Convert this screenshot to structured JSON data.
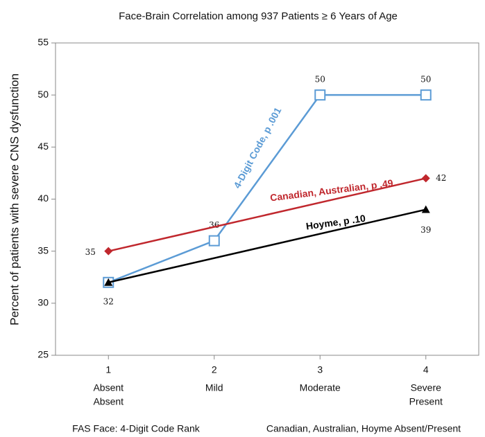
{
  "chart_data": {
    "type": "line",
    "title": "Face-Brain Correlation among 937 Patients ≥ 6 Years of Age",
    "ylabel": "Percent of patients with severe CNS dysfunction",
    "xlabels": [
      "FAS Face: 4-Digit Code Rank",
      "Canadian, Australian, Hoyme Absent/Present"
    ],
    "x": [
      1,
      2,
      3,
      4
    ],
    "category_labels": [
      [
        "Absent",
        "Absent"
      ],
      [
        "Mild"
      ],
      [
        "Moderate"
      ],
      [
        "Severe",
        "Present"
      ]
    ],
    "xlim": [
      0.5,
      4.5
    ],
    "xticks": [
      1,
      2,
      3,
      4
    ],
    "ylim": [
      25,
      55
    ],
    "yticks": [
      25,
      30,
      35,
      40,
      45,
      50,
      55
    ],
    "grid": false,
    "series": [
      {
        "name": "4-Digit Code, p .001",
        "color": "#5b9bd5",
        "marker": "square",
        "values": [
          32,
          36,
          50,
          50
        ],
        "value_labels": [
          "32",
          "36",
          "50",
          "50"
        ]
      },
      {
        "name": "Canadian, Australian, p .49",
        "color": "#c0272d",
        "marker": "diamond",
        "values": [
          35,
          null,
          null,
          42
        ],
        "value_labels": [
          "35",
          null,
          null,
          "42"
        ]
      },
      {
        "name": "Hoyme, p .10",
        "color": "#000000",
        "marker": "triangle",
        "values": [
          32,
          null,
          null,
          39
        ],
        "value_labels": [
          null,
          null,
          null,
          "39"
        ]
      }
    ]
  }
}
